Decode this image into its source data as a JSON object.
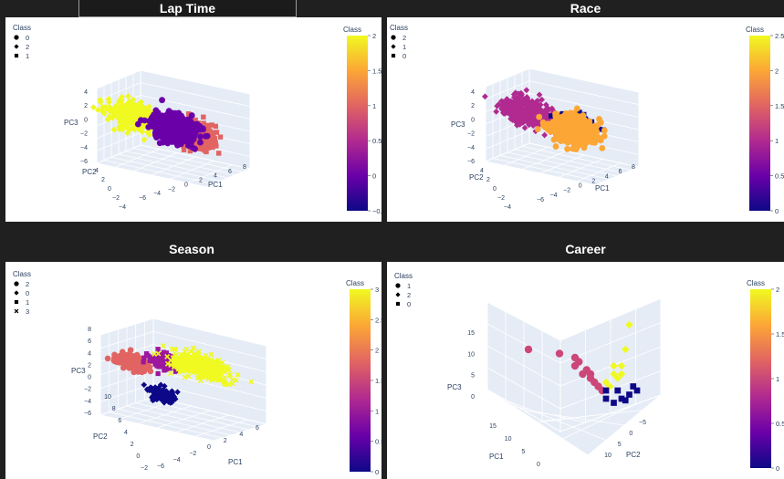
{
  "panels": [
    {
      "title": "Lap Time",
      "chart_data": {
        "type": "scatter",
        "projection": "3d",
        "axes": [
          "PC1",
          "PC2",
          "PC3"
        ],
        "legend_title": "Class",
        "legend": [
          {
            "label": "0",
            "symbol": "circle"
          },
          {
            "label": "2",
            "symbol": "diamond"
          },
          {
            "label": "1",
            "symbol": "square"
          }
        ],
        "colorbar": {
          "title": "Class",
          "min": -0.5,
          "max": 2,
          "ticks": [
            {
              "v": 2,
              "t": "2"
            },
            {
              "v": 1.5,
              "t": "1.5"
            },
            {
              "v": 1,
              "t": "1"
            },
            {
              "v": 0.5,
              "t": "0.5"
            },
            {
              "v": 0,
              "t": "0"
            },
            {
              "v": -0.5,
              "t": "−0.5"
            }
          ]
        },
        "tick_labels": {
          "pc1": [
            "−6",
            "−4",
            "−2",
            "0",
            "2",
            "4",
            "6",
            "8"
          ],
          "pc2": [
            "−4",
            "−2",
            "0",
            "2",
            "4"
          ],
          "pc3": [
            "4",
            "2",
            "0",
            "−2",
            "−4",
            "−6"
          ]
        },
        "clusters": [
          {
            "class": 2,
            "symbol": "diamond",
            "color": "#f0f921",
            "pc1": -3,
            "pc2": 2,
            "pc3": 1,
            "spread": [
              2.5,
              1.5,
              2
            ]
          },
          {
            "class": 1,
            "symbol": "square",
            "color": "#e16462",
            "pc1": 4,
            "pc2": 2,
            "pc3": 1,
            "spread": [
              2,
              1.5,
              2
            ]
          },
          {
            "class": 0,
            "symbol": "circle",
            "color": "#6a00a8",
            "pc1": 0,
            "pc2": -1,
            "pc3": -1,
            "spread": [
              2.5,
              2,
              2
            ]
          }
        ]
      }
    },
    {
      "title": "Race",
      "chart_data": {
        "type": "scatter",
        "projection": "3d",
        "axes": [
          "PC1",
          "PC2",
          "PC3"
        ],
        "legend_title": "Class",
        "legend": [
          {
            "label": "2",
            "symbol": "circle"
          },
          {
            "label": "1",
            "symbol": "diamond"
          },
          {
            "label": "0",
            "symbol": "square"
          }
        ],
        "colorbar": {
          "title": "Class",
          "min": 0,
          "max": 2.5,
          "ticks": [
            {
              "v": 2.5,
              "t": "2.5"
            },
            {
              "v": 2,
              "t": "2"
            },
            {
              "v": 1.5,
              "t": "1.5"
            },
            {
              "v": 1,
              "t": "1"
            },
            {
              "v": 0.5,
              "t": "0.5"
            },
            {
              "v": 0,
              "t": "0"
            }
          ]
        },
        "tick_labels": {
          "pc1": [
            "−6",
            "−4",
            "−2",
            "0",
            "2",
            "4",
            "6",
            "8"
          ],
          "pc2": [
            "−4",
            "−2",
            "0",
            "2",
            "4"
          ],
          "pc3": [
            "4",
            "2",
            "0",
            "−2",
            "−4",
            "−6"
          ]
        },
        "clusters": [
          {
            "class": 1,
            "symbol": "diamond",
            "color": "#b12a90",
            "pc1": -3,
            "pc2": 1,
            "pc3": 1,
            "spread": [
              2.5,
              1.5,
              2
            ]
          },
          {
            "class": 0,
            "symbol": "square",
            "color": "#0d0887",
            "pc1": 3,
            "pc2": 2,
            "pc3": 2,
            "spread": [
              2,
              1.5,
              1.5
            ]
          },
          {
            "class": 2,
            "symbol": "circle",
            "color": "#fca636",
            "pc1": 1,
            "pc2": -1,
            "pc3": -1,
            "spread": [
              2.5,
              2,
              2
            ]
          }
        ]
      }
    },
    {
      "title": "Season",
      "chart_data": {
        "type": "scatter",
        "projection": "3d",
        "axes": [
          "PC1",
          "PC2",
          "PC3"
        ],
        "legend_title": "Class",
        "legend": [
          {
            "label": "2",
            "symbol": "circle"
          },
          {
            "label": "0",
            "symbol": "diamond"
          },
          {
            "label": "1",
            "symbol": "square"
          },
          {
            "label": "3",
            "symbol": "x"
          }
        ],
        "colorbar": {
          "title": "Class",
          "min": 0,
          "max": 3,
          "ticks": [
            {
              "v": 3,
              "t": "3"
            },
            {
              "v": 2.5,
              "t": "2.5"
            },
            {
              "v": 2,
              "t": "2"
            },
            {
              "v": 1.5,
              "t": "1.5"
            },
            {
              "v": 1,
              "t": "1"
            },
            {
              "v": 0.5,
              "t": "0.5"
            },
            {
              "v": 0,
              "t": "0"
            }
          ]
        },
        "tick_labels": {
          "pc1": [
            "−6",
            "−4",
            "−2",
            "0",
            "2",
            "4",
            "6"
          ],
          "pc2": [
            "−2",
            "0",
            "2",
            "4",
            "6",
            "8",
            "10"
          ],
          "pc3": [
            "8",
            "6",
            "4",
            "2",
            "0",
            "−2",
            "−4",
            "−6"
          ]
        },
        "clusters": [
          {
            "class": 2,
            "symbol": "circle",
            "color": "#e16462",
            "pc1": -4,
            "pc2": 2,
            "pc3": 2,
            "spread": [
              2,
              1,
              1
            ]
          },
          {
            "class": 1,
            "symbol": "square",
            "color": "#9c179e",
            "pc1": -1,
            "pc2": 1,
            "pc3": 3,
            "spread": [
              1.5,
              1,
              1
            ]
          },
          {
            "class": 3,
            "symbol": "x",
            "color": "#f0f921",
            "pc1": 3,
            "pc2": 1,
            "pc3": 4,
            "spread": [
              3,
              1.5,
              1.5
            ]
          },
          {
            "class": 0,
            "symbol": "diamond",
            "color": "#0d0887",
            "pc1": 0,
            "pc2": 3,
            "pc3": -1,
            "spread": [
              1.5,
              1,
              1
            ]
          }
        ]
      }
    },
    {
      "title": "Career",
      "chart_data": {
        "type": "scatter",
        "projection": "3d",
        "axes": [
          "PC1",
          "PC2",
          "PC3"
        ],
        "legend_title": "Class",
        "legend": [
          {
            "label": "1",
            "symbol": "circle"
          },
          {
            "label": "2",
            "symbol": "diamond"
          },
          {
            "label": "0",
            "symbol": "square"
          }
        ],
        "colorbar": {
          "title": "Class",
          "min": 0,
          "max": 2,
          "ticks": [
            {
              "v": 2,
              "t": "2"
            },
            {
              "v": 1.5,
              "t": "1.5"
            },
            {
              "v": 1,
              "t": "1"
            },
            {
              "v": 0.5,
              "t": "0.5"
            },
            {
              "v": 0,
              "t": "0"
            }
          ]
        },
        "tick_labels": {
          "pc1": [
            "15",
            "10",
            "5",
            "0"
          ],
          "pc2": [
            "10",
            "5",
            "0",
            "−5"
          ],
          "pc3": [
            "15",
            "10",
            "5",
            "0"
          ]
        },
        "clusters": [
          {
            "class": 1,
            "symbol": "circle",
            "color": "#cc4778",
            "points": [
              [
                10,
                6
              ],
              [
                6,
                5.5
              ],
              [
                4,
                5
              ],
              [
                2.5,
                3.5
              ],
              [
                3,
                3
              ],
              [
                2,
                3
              ],
              [
                1.5,
                2
              ],
              [
                1,
                1.5
              ],
              [
                4,
                4
              ],
              [
                2,
                2.5
              ],
              [
                0.5,
                1
              ],
              [
                3.5,
                4.5
              ]
            ]
          },
          {
            "class": 2,
            "symbol": "diamond",
            "color": "#f0f921",
            "points": [
              [
                0,
                2
              ],
              [
                -1,
                3
              ],
              [
                -2,
                4
              ],
              [
                -3,
                9
              ],
              [
                -2.5,
                6
              ],
              [
                -1.5,
                2.5
              ],
              [
                -0.5,
                1.5
              ],
              [
                -1,
                4
              ],
              [
                -2,
                3
              ]
            ]
          },
          {
            "class": 0,
            "symbol": "square",
            "color": "#0d0887",
            "points": [
              [
                0,
                0
              ],
              [
                -1,
                -0.5
              ],
              [
                -2,
                0
              ],
              [
                -3,
                0.5
              ],
              [
                -4,
                1
              ],
              [
                -1.5,
                1
              ],
              [
                0,
                1
              ],
              [
                -2.5,
                -0.2
              ],
              [
                -3.5,
                1.5
              ]
            ]
          }
        ]
      }
    }
  ]
}
